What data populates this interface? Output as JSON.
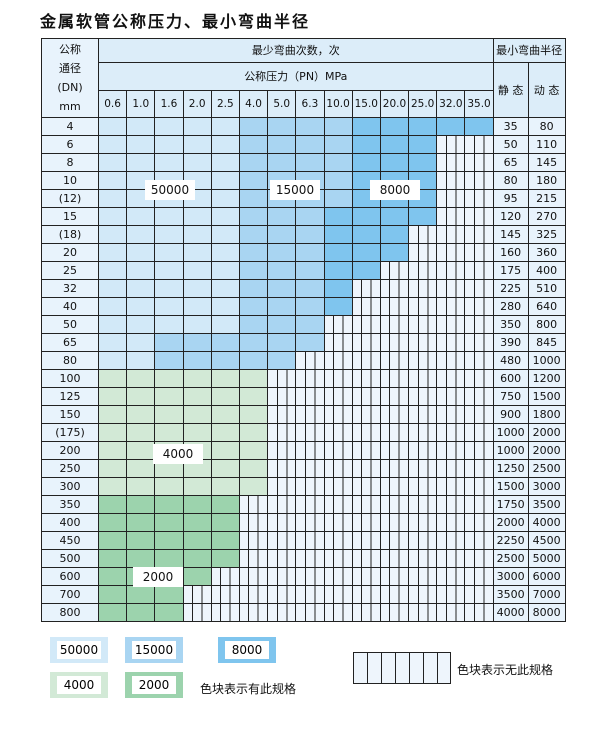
{
  "title": "金属软管公称压力、最小弯曲半径",
  "header": {
    "dn_label": [
      "公称",
      "通径",
      "(DN)",
      "mm"
    ],
    "bend_count": "最少弯曲次数，次",
    "pressure_label": "公称压力（PN）MPa",
    "radius_label": "最小弯曲半径",
    "static": "静 态",
    "dynamic": "动 态",
    "pressures": [
      "0.6",
      "1.0",
      "1.6",
      "2.0",
      "2.5",
      "4.0",
      "5.0",
      "6.3",
      "10.0",
      "15.0",
      "20.0",
      "25.0",
      "32.0",
      "35.0"
    ]
  },
  "regions": {
    "A": "50000",
    "B": "15000",
    "C": "8000",
    "D": "4000",
    "E": "2000"
  },
  "colors": {
    "A": "#d2e9f8",
    "B": "#a9d5f2",
    "C": "#7fc5ee",
    "D": "#d2e9d6",
    "E": "#9cd3ad",
    "none": "#eef5fc"
  },
  "rows": [
    {
      "dn": "4",
      "static": "35",
      "dynamic": "80",
      "cells": "AAAAABBBBCCCCC"
    },
    {
      "dn": "6",
      "static": "50",
      "dynamic": "110",
      "cells": "AAAAABBBBCCC--"
    },
    {
      "dn": "8",
      "static": "65",
      "dynamic": "145",
      "cells": "AAAAABBBBCCC--"
    },
    {
      "dn": "10",
      "static": "80",
      "dynamic": "180",
      "cells": "AAAAABBBBCCC--"
    },
    {
      "dn": "(12)",
      "static": "95",
      "dynamic": "215",
      "cells": "AAAAABBBBCCC--"
    },
    {
      "dn": "15",
      "static": "120",
      "dynamic": "270",
      "cells": "AAAAABBBCCCC--"
    },
    {
      "dn": "(18)",
      "static": "145",
      "dynamic": "325",
      "cells": "AAAAABBBCCC---"
    },
    {
      "dn": "20",
      "static": "160",
      "dynamic": "360",
      "cells": "AAAAABBBCCC---"
    },
    {
      "dn": "25",
      "static": "175",
      "dynamic": "400",
      "cells": "AAAAABBBCC----"
    },
    {
      "dn": "32",
      "static": "225",
      "dynamic": "510",
      "cells": "AAAAABBBC-----"
    },
    {
      "dn": "40",
      "static": "280",
      "dynamic": "640",
      "cells": "AAAAABBBC-----"
    },
    {
      "dn": "50",
      "static": "350",
      "dynamic": "800",
      "cells": "AAAAABBB------"
    },
    {
      "dn": "65",
      "static": "390",
      "dynamic": "845",
      "cells": "AABBBBBB------"
    },
    {
      "dn": "80",
      "static": "480",
      "dynamic": "1000",
      "cells": "AABBBBB-------"
    },
    {
      "dn": "100",
      "static": "600",
      "dynamic": "1200",
      "cells": "DDDDDD--------"
    },
    {
      "dn": "125",
      "static": "750",
      "dynamic": "1500",
      "cells": "DDDDDD--------"
    },
    {
      "dn": "150",
      "static": "900",
      "dynamic": "1800",
      "cells": "DDDDDD--------"
    },
    {
      "dn": "(175)",
      "static": "1000",
      "dynamic": "2000",
      "cells": "DDDDDD--------"
    },
    {
      "dn": "200",
      "static": "1000",
      "dynamic": "2000",
      "cells": "DDDDDD--------"
    },
    {
      "dn": "250",
      "static": "1250",
      "dynamic": "2500",
      "cells": "DDDDDD--------"
    },
    {
      "dn": "300",
      "static": "1500",
      "dynamic": "3000",
      "cells": "DDDDDD--------"
    },
    {
      "dn": "350",
      "static": "1750",
      "dynamic": "3500",
      "cells": "EEEEE---------"
    },
    {
      "dn": "400",
      "static": "2000",
      "dynamic": "4000",
      "cells": "EEEEE---------"
    },
    {
      "dn": "450",
      "static": "2250",
      "dynamic": "4500",
      "cells": "EEEEE---------"
    },
    {
      "dn": "500",
      "static": "2500",
      "dynamic": "5000",
      "cells": "EEEEE---------"
    },
    {
      "dn": "600",
      "static": "3000",
      "dynamic": "6000",
      "cells": "EEEE----------"
    },
    {
      "dn": "700",
      "static": "3500",
      "dynamic": "7000",
      "cells": "EEE-----------"
    },
    {
      "dn": "800",
      "static": "4000",
      "dynamic": "8000",
      "cells": "EEE-----------"
    }
  ],
  "legend": {
    "items": [
      "50000",
      "15000",
      "8000",
      "4000",
      "2000"
    ],
    "has_spec": "色块表示有此规格",
    "no_spec": "色块表示无此规格"
  }
}
